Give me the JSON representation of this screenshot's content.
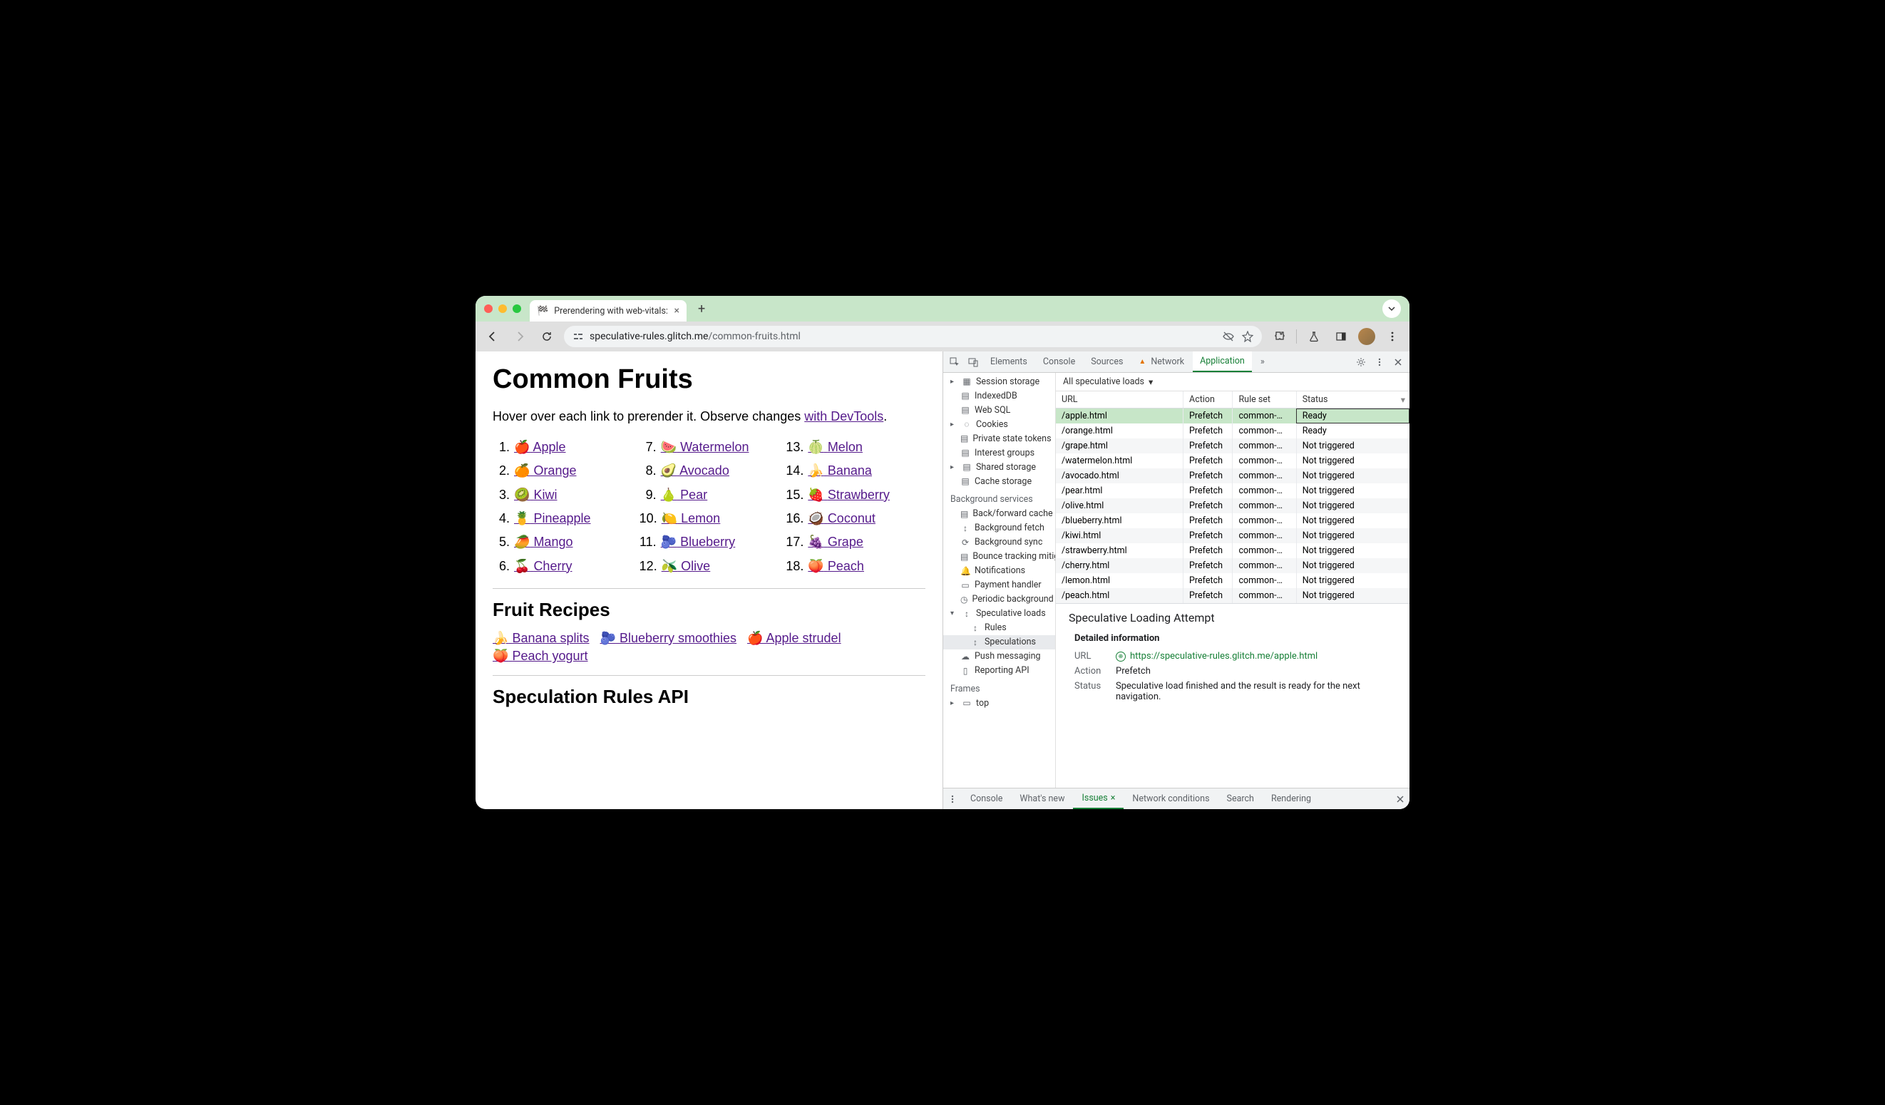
{
  "colors": {
    "titlebar_bg": "#c8e6c9",
    "toolbar_bg": "#e0e0e0",
    "visited_link": "#551a8b",
    "accent_green": "#188038",
    "row_selected_bg": "#c7e6c8"
  },
  "window": {
    "tab_title": "Prerendering with web-vitals:",
    "url_host": "speculative-rules.glitch.me",
    "url_path": "/common-fruits.html"
  },
  "page": {
    "h1": "Common Fruits",
    "intro_before": "Hover over each link to prerender it. Observe changes ",
    "intro_link": "with DevTools",
    "intro_after": ".",
    "fruits": [
      {
        "n": "1.",
        "emoji": "🍎",
        "label": "Apple"
      },
      {
        "n": "2.",
        "emoji": "🍊",
        "label": "Orange"
      },
      {
        "n": "3.",
        "emoji": "🥝",
        "label": "Kiwi"
      },
      {
        "n": "4.",
        "emoji": "🍍",
        "label": "Pineapple"
      },
      {
        "n": "5.",
        "emoji": "🥭",
        "label": "Mango"
      },
      {
        "n": "6.",
        "emoji": "🍒",
        "label": "Cherry"
      },
      {
        "n": "7.",
        "emoji": "🍉",
        "label": "Watermelon"
      },
      {
        "n": "8.",
        "emoji": "🥑",
        "label": "Avocado"
      },
      {
        "n": "9.",
        "emoji": "🍐",
        "label": "Pear"
      },
      {
        "n": "10.",
        "emoji": "🍋",
        "label": "Lemon"
      },
      {
        "n": "11.",
        "emoji": "🫐",
        "label": "Blueberry"
      },
      {
        "n": "12.",
        "emoji": "🫒",
        "label": "Olive"
      },
      {
        "n": "13.",
        "emoji": "🍈",
        "label": "Melon"
      },
      {
        "n": "14.",
        "emoji": "🍌",
        "label": "Banana"
      },
      {
        "n": "15.",
        "emoji": "🍓",
        "label": "Strawberry"
      },
      {
        "n": "16.",
        "emoji": "🥥",
        "label": "Coconut"
      },
      {
        "n": "17.",
        "emoji": "🍇",
        "label": "Grape"
      },
      {
        "n": "18.",
        "emoji": "🍑",
        "label": "Peach"
      }
    ],
    "h2_recipes": "Fruit Recipes",
    "recipes": [
      {
        "emoji": "🍌",
        "label": "Banana splits"
      },
      {
        "emoji": "🫐",
        "label": "Blueberry smoothies"
      },
      {
        "emoji": "🍎",
        "label": "Apple strudel"
      },
      {
        "emoji": "🍑",
        "label": "Peach yogurt"
      }
    ],
    "h2_api": "Speculation Rules API"
  },
  "devtools": {
    "tabs": {
      "elements": "Elements",
      "console": "Console",
      "sources": "Sources",
      "network": "Network",
      "application": "Application",
      "more": "»"
    },
    "sidebar": {
      "session_storage": "Session storage",
      "indexeddb": "IndexedDB",
      "websql": "Web SQL",
      "cookies": "Cookies",
      "private_state": "Private state tokens",
      "interest_groups": "Interest groups",
      "shared_storage": "Shared storage",
      "cache_storage": "Cache storage",
      "bg_services": "Background services",
      "back_forward": "Back/forward cache",
      "bg_fetch": "Background fetch",
      "bg_sync": "Background sync",
      "bounce": "Bounce tracking mitigation",
      "notifications": "Notifications",
      "payment": "Payment handler",
      "periodic": "Periodic background",
      "spec_loads": "Speculative loads",
      "rules": "Rules",
      "speculations": "Speculations",
      "push": "Push messaging",
      "reporting": "Reporting API",
      "frames": "Frames",
      "top": "top"
    },
    "filter_label": "All speculative loads",
    "table": {
      "col_url": "URL",
      "col_action": "Action",
      "col_ruleset": "Rule set",
      "col_status": "Status",
      "rows": [
        {
          "url": "/apple.html",
          "action": "Prefetch",
          "ruleset": "common-…",
          "status": "Ready",
          "selected": true
        },
        {
          "url": "/orange.html",
          "action": "Prefetch",
          "ruleset": "common-…",
          "status": "Ready"
        },
        {
          "url": "/grape.html",
          "action": "Prefetch",
          "ruleset": "common-…",
          "status": "Not triggered"
        },
        {
          "url": "/watermelon.html",
          "action": "Prefetch",
          "ruleset": "common-…",
          "status": "Not triggered"
        },
        {
          "url": "/avocado.html",
          "action": "Prefetch",
          "ruleset": "common-…",
          "status": "Not triggered"
        },
        {
          "url": "/pear.html",
          "action": "Prefetch",
          "ruleset": "common-…",
          "status": "Not triggered"
        },
        {
          "url": "/olive.html",
          "action": "Prefetch",
          "ruleset": "common-…",
          "status": "Not triggered"
        },
        {
          "url": "/blueberry.html",
          "action": "Prefetch",
          "ruleset": "common-…",
          "status": "Not triggered"
        },
        {
          "url": "/kiwi.html",
          "action": "Prefetch",
          "ruleset": "common-…",
          "status": "Not triggered"
        },
        {
          "url": "/strawberry.html",
          "action": "Prefetch",
          "ruleset": "common-…",
          "status": "Not triggered"
        },
        {
          "url": "/cherry.html",
          "action": "Prefetch",
          "ruleset": "common-…",
          "status": "Not triggered"
        },
        {
          "url": "/lemon.html",
          "action": "Prefetch",
          "ruleset": "common-…",
          "status": "Not triggered"
        },
        {
          "url": "/peach.html",
          "action": "Prefetch",
          "ruleset": "common-…",
          "status": "Not triggered"
        }
      ]
    },
    "detail": {
      "title": "Speculative Loading Attempt",
      "section": "Detailed information",
      "url_k": "URL",
      "url_v": "https://speculative-rules.glitch.me/apple.html",
      "action_k": "Action",
      "action_v": "Prefetch",
      "status_k": "Status",
      "status_v": "Speculative load finished and the result is ready for the next navigation."
    },
    "drawer": {
      "console": "Console",
      "whatsnew": "What's new",
      "issues": "Issues",
      "network_cond": "Network conditions",
      "search": "Search",
      "rendering": "Rendering"
    }
  }
}
